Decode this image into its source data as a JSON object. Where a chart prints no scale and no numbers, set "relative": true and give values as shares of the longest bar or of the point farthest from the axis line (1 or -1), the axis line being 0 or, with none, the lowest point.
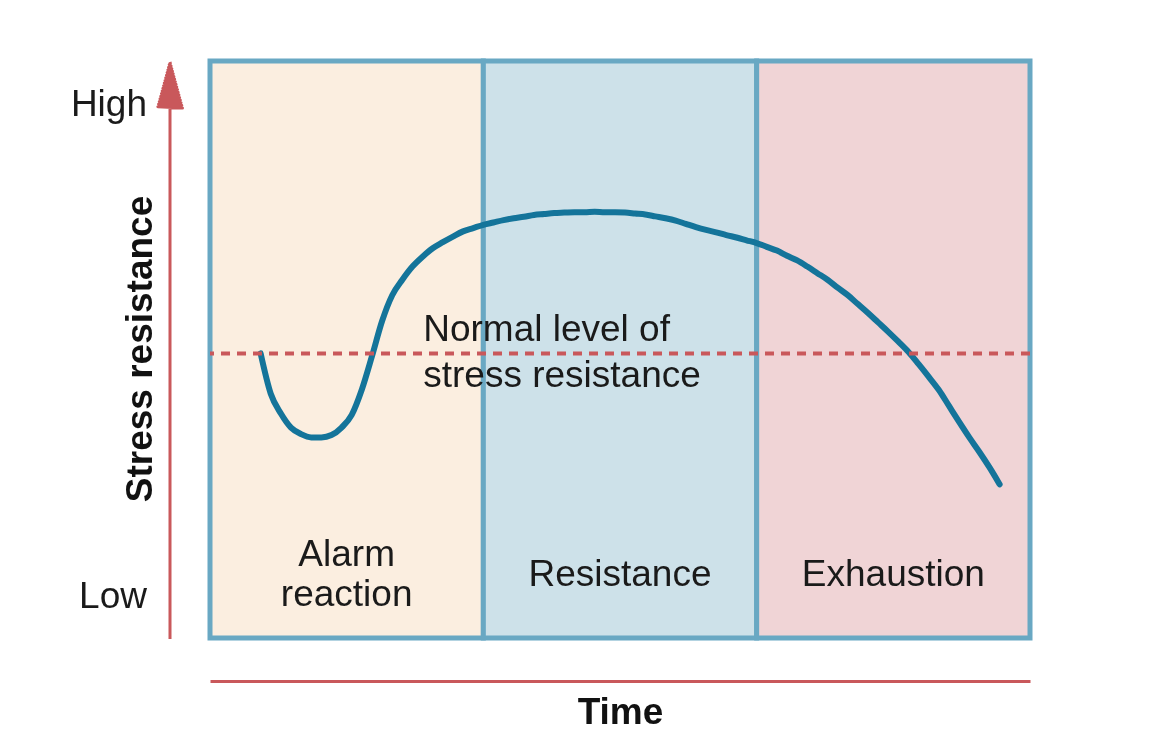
{
  "chart_data": {
    "type": "line",
    "xlabel": "Time",
    "ylabel": "Stress resistance",
    "relative": true,
    "categories": [
      null,
      null,
      null,
      null,
      null,
      null,
      null,
      null,
      null,
      null,
      null,
      null,
      null,
      null,
      null,
      null,
      null,
      null,
      null,
      null,
      null,
      null,
      null,
      null,
      null,
      null,
      null,
      null,
      null,
      null,
      null,
      null,
      null,
      null,
      null,
      null,
      null,
      null,
      null,
      null,
      null,
      null,
      null,
      null,
      null,
      null,
      null,
      null,
      null,
      null,
      null,
      null,
      null,
      null,
      null,
      null,
      null,
      null,
      null,
      null,
      null,
      null,
      null,
      null,
      null,
      null,
      null,
      null,
      null,
      null,
      null,
      null,
      null,
      null,
      null,
      null,
      null,
      null,
      null,
      null,
      null,
      null
    ],
    "series": [
      {
        "color": "#14749a",
        "values": [
          null,
          null,
          null,
          null,
          null,
          0.698,
          0.612,
          0.57,
          0.54,
          0.526,
          0.519,
          0.519,
          0.524,
          0.54,
          0.567,
          0.621,
          0.692,
          0.767,
          0.822,
          0.855,
          0.883,
          0.904,
          0.922,
          0.935,
          0.947,
          0.958,
          0.965,
          0.972,
          0.977,
          0.982,
          0.986,
          0.989,
          0.993,
          0.995,
          0.997,
          0.998,
          0.999,
          0.999,
          1.0,
          0.999,
          0.999,
          0.998,
          0.996,
          0.994,
          0.99,
          0.986,
          0.981,
          0.974,
          0.967,
          0.961,
          0.956,
          0.95,
          0.945,
          0.939,
          0.933,
          0.925,
          0.917,
          0.906,
          0.896,
          0.883,
          0.869,
          0.855,
          0.838,
          0.822,
          0.803,
          0.784,
          0.764,
          0.744,
          0.723,
          0.701,
          0.675,
          0.648,
          0.62,
          0.586,
          0.552,
          0.519,
          0.488,
          0.455,
          0.419,
          null,
          null,
          null
        ]
      }
    ],
    "ref_lines": [
      {
        "axis": "y",
        "value": 0.698,
        "label": "Normal level of\nstress resistance",
        "color": "#c9585b",
        "line_style": "dashed"
      }
    ],
    "annotations": [
      "High",
      "Low",
      "Alarm\nreaction",
      "Resistance",
      "Exhaustion"
    ]
  }
}
